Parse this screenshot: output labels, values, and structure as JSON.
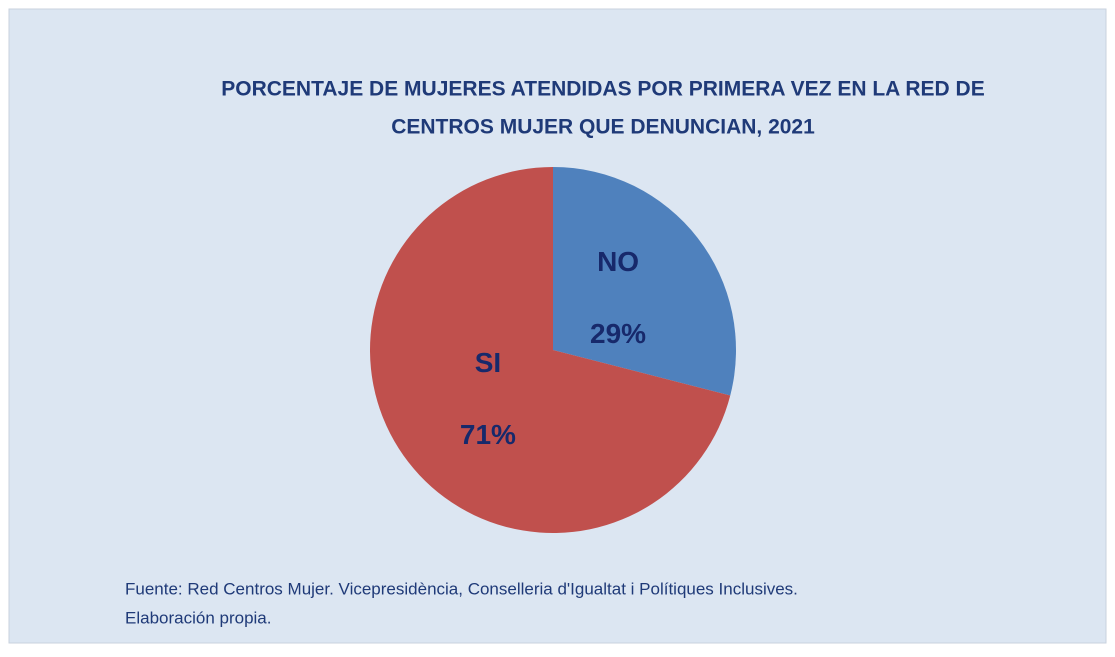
{
  "chart_data": {
    "type": "pie",
    "title": [
      "PORCENTAJE DE MUJERES ATENDIDAS POR PRIMERA VEZ EN LA RED DE",
      "CENTROS MUJER QUE DENUNCIAN, 2021"
    ],
    "categories": [
      "NO",
      "SI"
    ],
    "values": [
      29,
      71
    ],
    "value_labels": [
      "29%",
      "71%"
    ],
    "colors": [
      "#4f81bd",
      "#c0504d"
    ],
    "source": [
      "Fuente: Red Centros Mujer. Vicepresidència, Conselleria d'Igualtat i Polítiques Inclusives.",
      "Elaboración propia."
    ]
  }
}
